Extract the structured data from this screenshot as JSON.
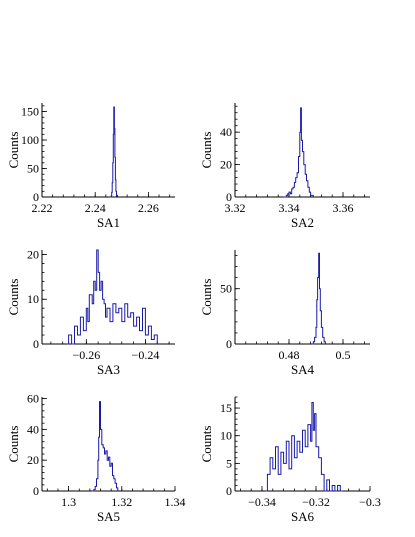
{
  "chart_data": [
    {
      "type": "line",
      "title": "",
      "xlabel": "SA1",
      "ylabel": "Counts",
      "xlim": [
        2.22,
        2.27
      ],
      "ylim": [
        0,
        165
      ],
      "xticks": [
        2.22,
        2.24,
        2.26
      ],
      "xticklabels": [
        "2.22",
        "2.24",
        "2.26"
      ],
      "yticks": [
        0,
        50,
        100,
        150
      ],
      "yticklabels": [
        "0",
        "50",
        "100",
        "150"
      ],
      "grid": false,
      "series": [
        {
          "x": [
            2.2455,
            2.246,
            2.2462,
            2.2464,
            2.2466,
            2.2468,
            2.247,
            2.2472,
            2.2474,
            2.2476,
            2.2478,
            2.248,
            2.2484
          ],
          "values": [
            0,
            2,
            8,
            25,
            60,
            110,
            158,
            120,
            70,
            30,
            10,
            3,
            0
          ]
        }
      ],
      "color": "#1a1aa8"
    },
    {
      "type": "line",
      "title": "",
      "xlabel": "SA2",
      "ylabel": "Counts",
      "xlim": [
        3.32,
        3.37
      ],
      "ylim": [
        0,
        58
      ],
      "xticks": [
        3.32,
        3.34,
        3.36
      ],
      "xticklabels": [
        "3.32",
        "3.34",
        "3.36"
      ],
      "yticks": [
        0,
        20,
        40
      ],
      "yticklabels": [
        "0",
        "20",
        "40"
      ],
      "grid": false,
      "series": [
        {
          "x": [
            3.338,
            3.339,
            3.3395,
            3.34,
            3.3405,
            3.341,
            3.3415,
            3.342,
            3.3425,
            3.343,
            3.3435,
            3.344,
            3.3443,
            3.3446,
            3.345,
            3.3455,
            3.346,
            3.3465,
            3.347,
            3.3475,
            3.348,
            3.349
          ],
          "values": [
            0,
            1,
            2,
            3,
            2,
            5,
            6,
            9,
            12,
            15,
            25,
            40,
            55,
            35,
            28,
            20,
            14,
            10,
            6,
            3,
            1,
            0
          ]
        }
      ],
      "color": "#1a1aa8"
    },
    {
      "type": "line",
      "title": "",
      "xlabel": "SA3",
      "ylabel": "Counts",
      "xlim": [
        -0.275,
        -0.23
      ],
      "ylim": [
        0,
        21
      ],
      "xticks": [
        -0.26,
        -0.24
      ],
      "xticklabels": [
        "−0.26",
        "−0.24"
      ],
      "yticks": [
        0,
        10,
        20
      ],
      "yticklabels": [
        "0",
        "10",
        "20"
      ],
      "grid": false,
      "series": [
        {
          "x": [
            -0.2665,
            -0.266,
            -0.265,
            -0.264,
            -0.263,
            -0.262,
            -0.261,
            -0.26,
            -0.2595,
            -0.259,
            -0.258,
            -0.2575,
            -0.257,
            -0.2565,
            -0.256,
            -0.2555,
            -0.255,
            -0.2545,
            -0.254,
            -0.2535,
            -0.253,
            -0.252,
            -0.251,
            -0.25,
            -0.249,
            -0.248,
            -0.247,
            -0.246,
            -0.245,
            -0.244,
            -0.243,
            -0.242,
            -0.241,
            -0.24,
            -0.239,
            -0.238,
            -0.237,
            -0.236
          ],
          "values": [
            0,
            2,
            0,
            4,
            2,
            6,
            3,
            8,
            5,
            11,
            9,
            14,
            12,
            21,
            16,
            12,
            14,
            10,
            9,
            6,
            8,
            5,
            9,
            7,
            8,
            5,
            9,
            6,
            7,
            4,
            6,
            3,
            8,
            2,
            4,
            1,
            2,
            0
          ]
        }
      ],
      "color": "#1a1aa8"
    },
    {
      "type": "line",
      "title": "",
      "xlabel": "SA4",
      "ylabel": "Counts",
      "xlim": [
        0.46,
        0.51
      ],
      "ylim": [
        0,
        85
      ],
      "xticks": [
        0.48,
        0.5
      ],
      "xticklabels": [
        "0.48",
        "0.5"
      ],
      "yticks": [
        0,
        50
      ],
      "yticklabels": [
        "0",
        "50"
      ],
      "grid": false,
      "series": [
        {
          "x": [
            0.4885,
            0.489,
            0.4895,
            0.49,
            0.4903,
            0.4906,
            0.491,
            0.4913,
            0.4916,
            0.492,
            0.4925,
            0.493,
            0.4935
          ],
          "values": [
            0,
            2,
            6,
            15,
            40,
            60,
            82,
            50,
            30,
            15,
            6,
            2,
            0
          ]
        }
      ],
      "color": "#1a1aa8"
    },
    {
      "type": "line",
      "title": "",
      "xlabel": "SA5",
      "ylabel": "Counts",
      "xlim": [
        1.29,
        1.34
      ],
      "ylim": [
        0,
        61
      ],
      "xticks": [
        1.3,
        1.32,
        1.34
      ],
      "xticklabels": [
        "1.3",
        "1.32",
        "1.34"
      ],
      "yticks": [
        0,
        20,
        40,
        60
      ],
      "yticklabels": [
        "0",
        "20",
        "40",
        "60"
      ],
      "grid": false,
      "series": [
        {
          "x": [
            1.309,
            1.3095,
            1.31,
            1.3105,
            1.311,
            1.3113,
            1.3116,
            1.312,
            1.3125,
            1.313,
            1.3135,
            1.314,
            1.3145,
            1.315,
            1.3155,
            1.316,
            1.3165,
            1.317,
            1.3175,
            1.318,
            1.3185
          ],
          "values": [
            0,
            1,
            3,
            8,
            20,
            35,
            58,
            40,
            30,
            28,
            24,
            26,
            20,
            22,
            16,
            18,
            10,
            8,
            5,
            2,
            0
          ]
        }
      ],
      "color": "#1a1aa8"
    },
    {
      "type": "line",
      "title": "",
      "xlabel": "SA6",
      "ylabel": "Counts",
      "xlim": [
        -0.35,
        -0.3
      ],
      "ylim": [
        0,
        17
      ],
      "xticks": [
        -0.34,
        -0.32,
        -0.3
      ],
      "xticklabels": [
        "−0.34",
        "−0.32",
        "−0.3"
      ],
      "yticks": [
        0,
        5,
        10,
        15
      ],
      "yticklabels": [
        "0",
        "5",
        "10",
        "15"
      ],
      "grid": false,
      "series": [
        {
          "x": [
            -0.3385,
            -0.338,
            -0.337,
            -0.336,
            -0.335,
            -0.334,
            -0.333,
            -0.332,
            -0.331,
            -0.33,
            -0.329,
            -0.328,
            -0.327,
            -0.326,
            -0.325,
            -0.324,
            -0.323,
            -0.322,
            -0.3215,
            -0.321,
            -0.3205,
            -0.32,
            -0.319,
            -0.318,
            -0.317,
            -0.316,
            -0.315,
            -0.314,
            -0.313,
            -0.312,
            -0.311,
            -0.31
          ],
          "values": [
            0,
            3,
            6,
            4,
            8,
            3,
            7,
            5,
            9,
            4,
            10,
            6,
            9,
            7,
            11,
            8,
            12,
            9,
            16,
            11,
            14,
            8,
            6,
            3,
            0,
            2,
            0,
            1,
            0,
            1,
            0,
            0
          ]
        }
      ],
      "color": "#1a1aa8"
    }
  ]
}
